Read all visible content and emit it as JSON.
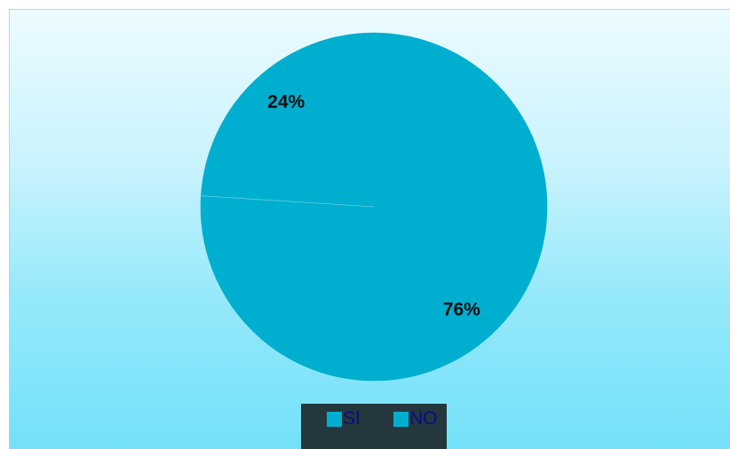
{
  "chart_data": {
    "type": "pie",
    "categories": [
      "SI",
      "NO"
    ],
    "values": [
      24,
      76
    ],
    "data_labels": [
      "24%",
      "76%"
    ],
    "colors": [
      "#00aecf",
      "#00aecf"
    ],
    "legend": {
      "placement": "bottom",
      "entries": [
        "SI",
        "NO"
      ]
    }
  }
}
